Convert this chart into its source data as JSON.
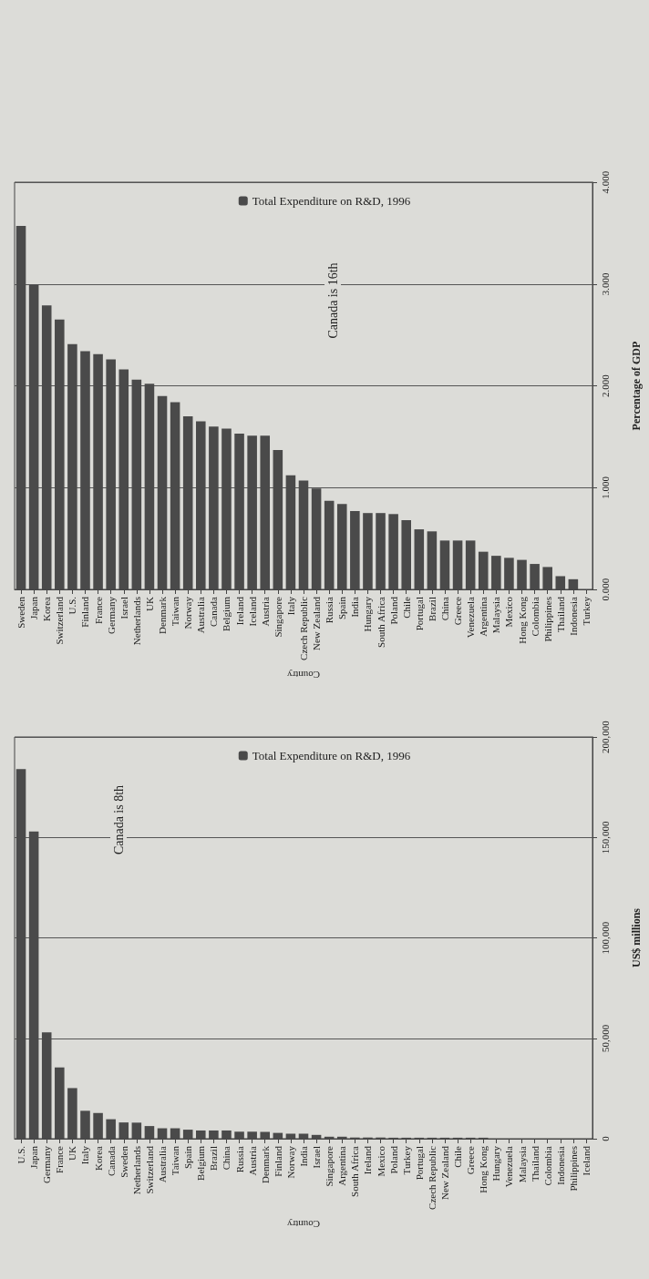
{
  "chart_data": [
    {
      "type": "bar",
      "xlabel": "Country",
      "ylabel": "Percentage of GDP",
      "categories": [
        "Sweden",
        "Japan",
        "Korea",
        "Switzerland",
        "U.S.",
        "Finland",
        "France",
        "Germany",
        "Israel",
        "Netherlands",
        "UK",
        "Denmark",
        "Taiwan",
        "Norway",
        "Australia",
        "Canada",
        "Belgium",
        "Ireland",
        "Iceland",
        "Austria",
        "Singapore",
        "Italy",
        "Czech Republic",
        "New Zealand",
        "Russia",
        "Spain",
        "India",
        "Hungary",
        "South Africa",
        "Poland",
        "Chile",
        "Portugal",
        "Brazil",
        "China",
        "Greece",
        "Venezuela",
        "Argentina",
        "Malaysia",
        "Mexico",
        "Hong Kong",
        "Colombia",
        "Philippines",
        "Thailand",
        "Indonesia",
        "Turkey"
      ],
      "series": [
        {
          "name": "Total Expenditure on R&D, 1996",
          "color": "#4a4a4a",
          "values": [
            3.57,
            2.99,
            2.79,
            2.65,
            2.41,
            2.34,
            2.31,
            2.26,
            2.16,
            2.06,
            2.02,
            1.9,
            1.84,
            1.7,
            1.65,
            1.6,
            1.58,
            1.53,
            1.51,
            1.51,
            1.37,
            1.12,
            1.07,
            0.99,
            0.87,
            0.84,
            0.77,
            0.75,
            0.75,
            0.74,
            0.68,
            0.59,
            0.57,
            0.48,
            0.48,
            0.48,
            0.37,
            0.33,
            0.31,
            0.29,
            0.25,
            0.22,
            0.13,
            0.1,
            0
          ]
        }
      ],
      "ylim": [
        0,
        4
      ],
      "yticks": [
        {
          "value": 0,
          "label": "0.000"
        },
        {
          "value": 1,
          "label": "1.000"
        },
        {
          "value": 2,
          "label": "2.000"
        },
        {
          "value": 3,
          "label": "3.000"
        },
        {
          "value": 4,
          "label": "4.000"
        }
      ],
      "grid": "y",
      "legend": "top",
      "annotations": [
        "Canada is 16th"
      ]
    },
    {
      "type": "bar",
      "xlabel": "Country",
      "ylabel": "US$ millions",
      "categories": [
        "U.S.",
        "Japan",
        "Germany",
        "France",
        "UK",
        "Italy",
        "Korea",
        "Canada",
        "Sweden",
        "Netherlands",
        "Switzerland",
        "Australia",
        "Taiwan",
        "Spain",
        "Belgium",
        "Brazil",
        "China",
        "Russia",
        "Austria",
        "Denmark",
        "Finland",
        "Norway",
        "India",
        "Israel",
        "Singapore",
        "Argentina",
        "South Africa",
        "Ireland",
        "Mexico",
        "Poland",
        "Turkey",
        "Portugal",
        "Czech Republic",
        "New Zealand",
        "Chile",
        "Greece",
        "Hong Kong",
        "Hungary",
        "Venezuela",
        "Malaysia",
        "Thailand",
        "Colombia",
        "Indonesia",
        "Philippines",
        "Iceland"
      ],
      "series": [
        {
          "name": "Total Expenditure on R&D, 1996",
          "color": "#4a4a4a",
          "values": [
            184000,
            153000,
            53000,
            35500,
            25200,
            13900,
            12800,
            9700,
            8100,
            8000,
            6300,
            5200,
            5200,
            4500,
            4100,
            4100,
            4100,
            3500,
            3500,
            3400,
            2900,
            2500,
            2500,
            1900,
            1000,
            1000,
            600,
            600,
            600,
            500,
            500,
            500,
            500,
            500,
            500,
            500,
            500,
            0,
            0,
            0,
            0,
            0,
            0,
            0,
            0
          ]
        }
      ],
      "ylim": [
        0,
        200000
      ],
      "yticks": [
        0,
        {
          "value": 50000,
          "label": "50,000"
        },
        {
          "value": 100000,
          "label": "100,000"
        },
        {
          "value": 150000,
          "label": "150,000"
        },
        {
          "value": 200000,
          "label": "200,000"
        }
      ],
      "grid": "y",
      "legend": "top",
      "annotations": [
        "Canada is 8th"
      ]
    }
  ]
}
